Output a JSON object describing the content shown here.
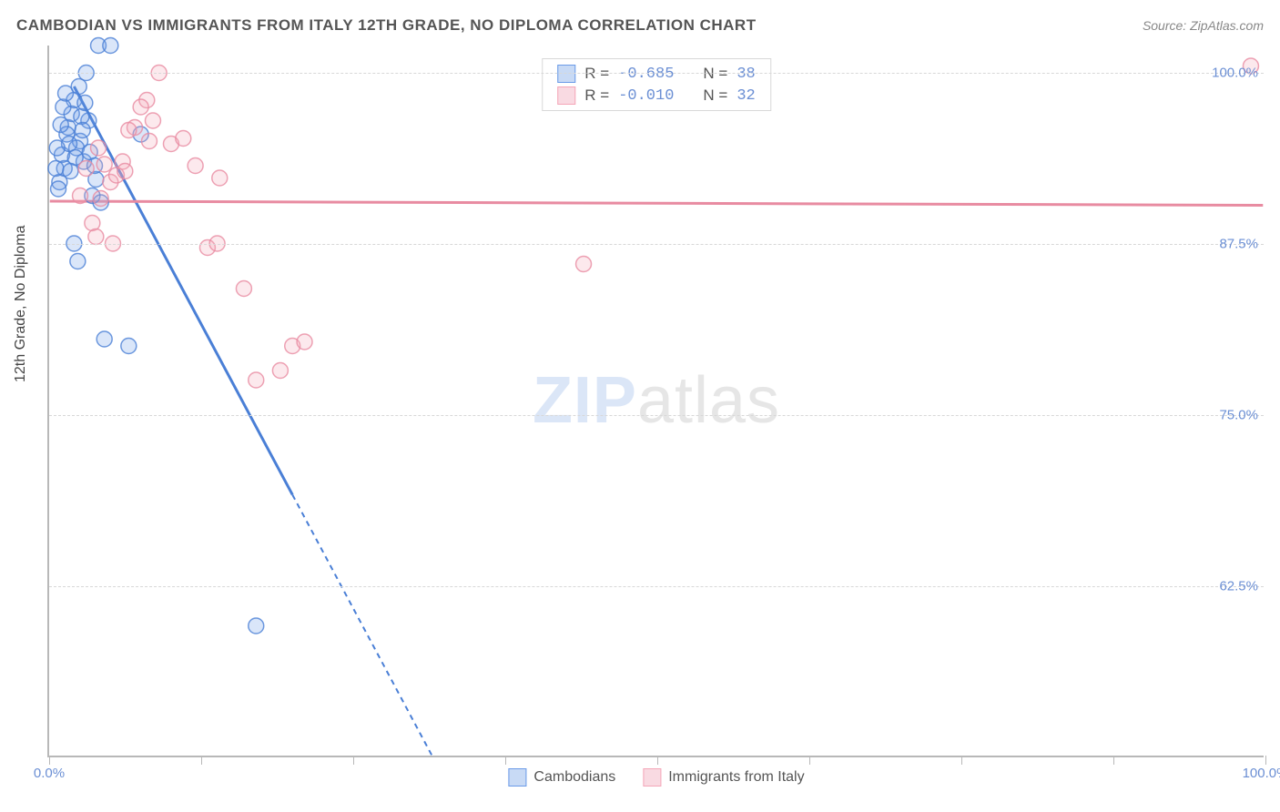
{
  "title": "CAMBODIAN VS IMMIGRANTS FROM ITALY 12TH GRADE, NO DIPLOMA CORRELATION CHART",
  "source": "Source: ZipAtlas.com",
  "y_axis_label": "12th Grade, No Diploma",
  "watermark": {
    "part1": "ZIP",
    "part2": "atlas"
  },
  "chart": {
    "type": "scatter",
    "xlim": [
      0,
      100
    ],
    "ylim": [
      50,
      102
    ],
    "x_ticks": [
      0,
      12.5,
      25,
      37.5,
      50,
      62.5,
      75,
      87.5,
      100
    ],
    "x_tick_labels": {
      "0": "0.0%",
      "100": "100.0%"
    },
    "y_ticks": [
      62.5,
      75,
      87.5,
      100
    ],
    "y_tick_labels": {
      "62.5": "62.5%",
      "75": "75.0%",
      "87.5": "87.5%",
      "100": "100.0%"
    },
    "background_color": "#ffffff",
    "grid_color": "#d8d8d8",
    "axis_color": "#b8b8b8",
    "value_color": "#6b8fd4",
    "marker_radius": 8.5,
    "marker_fill_opacity": 0.25,
    "marker_stroke_opacity": 0.8,
    "series": [
      {
        "name": "Cambodians",
        "color": "#6b9be8",
        "stroke": "#4a7fd6",
        "R": "-0.685",
        "N": "38",
        "points": [
          [
            1,
            94
          ],
          [
            1.5,
            96
          ],
          [
            2,
            98
          ],
          [
            2.5,
            95
          ],
          [
            3,
            100
          ],
          [
            0.8,
            92
          ],
          [
            1.2,
            93
          ],
          [
            2.2,
            94.5
          ],
          [
            3.5,
            91
          ],
          [
            4,
            102
          ],
          [
            5,
            102
          ],
          [
            1.8,
            97
          ],
          [
            0.5,
            93
          ],
          [
            2.8,
            93.5
          ],
          [
            3.2,
            96.5
          ],
          [
            1.4,
            95.5
          ],
          [
            2.4,
            99
          ],
          [
            0.7,
            91.5
          ],
          [
            1.6,
            94.8
          ],
          [
            3.8,
            92.2
          ],
          [
            1.1,
            97.5
          ],
          [
            2.1,
            93.8
          ],
          [
            0.9,
            96.2
          ],
          [
            3.3,
            94.2
          ],
          [
            7.5,
            95.5
          ],
          [
            4.2,
            90.5
          ],
          [
            2.6,
            96.8
          ],
          [
            1.3,
            98.5
          ],
          [
            3.7,
            93.2
          ],
          [
            0.6,
            94.5
          ],
          [
            2.9,
            97.8
          ],
          [
            1.7,
            92.8
          ],
          [
            4.5,
            80.5
          ],
          [
            6.5,
            80
          ],
          [
            2,
            87.5
          ],
          [
            2.3,
            86.2
          ],
          [
            17,
            59.5
          ],
          [
            2.7,
            95.8
          ]
        ],
        "trend": {
          "x1": 2,
          "y1": 99,
          "x2": 31.5,
          "y2": 50,
          "solid_until_x": 20
        }
      },
      {
        "name": "Immigrants from Italy",
        "color": "#f4a6b8",
        "stroke": "#e88ba1",
        "R": "-0.010",
        "N": "32",
        "points": [
          [
            3,
            93
          ],
          [
            4,
            94.5
          ],
          [
            7,
            96
          ],
          [
            8,
            98
          ],
          [
            9,
            100
          ],
          [
            5,
            92
          ],
          [
            6,
            93.5
          ],
          [
            7.5,
            97.5
          ],
          [
            2.5,
            91
          ],
          [
            4.5,
            93.3
          ],
          [
            6.5,
            95.8
          ],
          [
            3.5,
            89
          ],
          [
            5.5,
            92.5
          ],
          [
            8.5,
            96.5
          ],
          [
            10,
            94.8
          ],
          [
            12,
            93.2
          ],
          [
            14,
            92.3
          ],
          [
            11,
            95.2
          ],
          [
            4.2,
            90.8
          ],
          [
            6.2,
            92.8
          ],
          [
            3.8,
            88
          ],
          [
            5.2,
            87.5
          ],
          [
            13,
            87.2
          ],
          [
            13.8,
            87.5
          ],
          [
            16,
            84.2
          ],
          [
            20,
            80
          ],
          [
            21,
            80.3
          ],
          [
            19,
            78.2
          ],
          [
            17,
            77.5
          ],
          [
            44,
            86
          ],
          [
            99,
            100.5
          ],
          [
            8.2,
            95
          ]
        ],
        "trend": {
          "x1": 0,
          "y1": 90.6,
          "x2": 100,
          "y2": 90.3,
          "solid_until_x": 100
        }
      }
    ]
  },
  "stats_legend": [
    {
      "swatch_fill": "#c8daf5",
      "swatch_stroke": "#6b9be8",
      "R": "-0.685",
      "N": "38"
    },
    {
      "swatch_fill": "#f9dae2",
      "swatch_stroke": "#f4a6b8",
      "R": "-0.010",
      "N": "32"
    }
  ],
  "bottom_legend": [
    {
      "swatch_fill": "#c8daf5",
      "swatch_stroke": "#6b9be8",
      "label": "Cambodians"
    },
    {
      "swatch_fill": "#f9dae2",
      "swatch_stroke": "#f4a6b8",
      "label": "Immigrants from Italy"
    }
  ]
}
